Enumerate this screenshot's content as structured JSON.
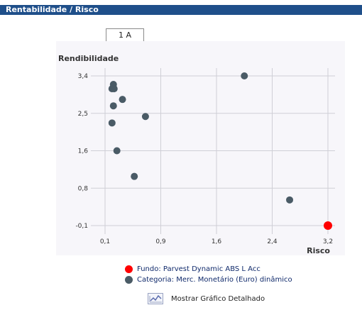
{
  "header": {
    "title": "Rentabilidade / Risco"
  },
  "tabs": [
    {
      "label": "1 A",
      "active": true
    }
  ],
  "chart_data": {
    "type": "scatter",
    "ylabel": "Rendibilidade",
    "xlabel": "Risco",
    "xlim": [
      0,
      3.2
    ],
    "ylim": [
      -0.1,
      3.4
    ],
    "x_ticks": [
      "0,1",
      "0,9",
      "1,6",
      "2,4",
      "3,2"
    ],
    "y_ticks": [
      "3,4",
      "2,5",
      "1,6",
      "0,8",
      "-0,1"
    ],
    "grid": true,
    "series": [
      {
        "name": "Fundo: Parvest Dynamic ABS L Acc",
        "color": "#ff0000",
        "points": [
          {
            "x": 3.2,
            "y": -0.1
          }
        ]
      },
      {
        "name": "Categoria: Merc. Monetário (Euro) dinâmico",
        "color": "#4a5b66",
        "points": [
          {
            "x": 2.0,
            "y": 3.4
          },
          {
            "x": 0.12,
            "y": 3.2
          },
          {
            "x": 0.1,
            "y": 3.1
          },
          {
            "x": 0.13,
            "y": 3.1
          },
          {
            "x": 0.25,
            "y": 2.85
          },
          {
            "x": 0.12,
            "y": 2.7
          },
          {
            "x": 0.58,
            "y": 2.45
          },
          {
            "x": 0.1,
            "y": 2.3
          },
          {
            "x": 0.17,
            "y": 1.65
          },
          {
            "x": 0.42,
            "y": 1.05
          },
          {
            "x": 2.65,
            "y": 0.5
          }
        ]
      }
    ]
  },
  "legend": {
    "items": [
      {
        "label": "Fundo: Parvest Dynamic ABS L Acc",
        "color": "#ff0000"
      },
      {
        "label": "Categoria: Merc. Monetário (Euro) dinâmico",
        "color": "#4a5b66"
      }
    ]
  },
  "detail_link": {
    "label": "Mostrar Gráfico Detalhado",
    "icon": "line-chart-icon"
  }
}
